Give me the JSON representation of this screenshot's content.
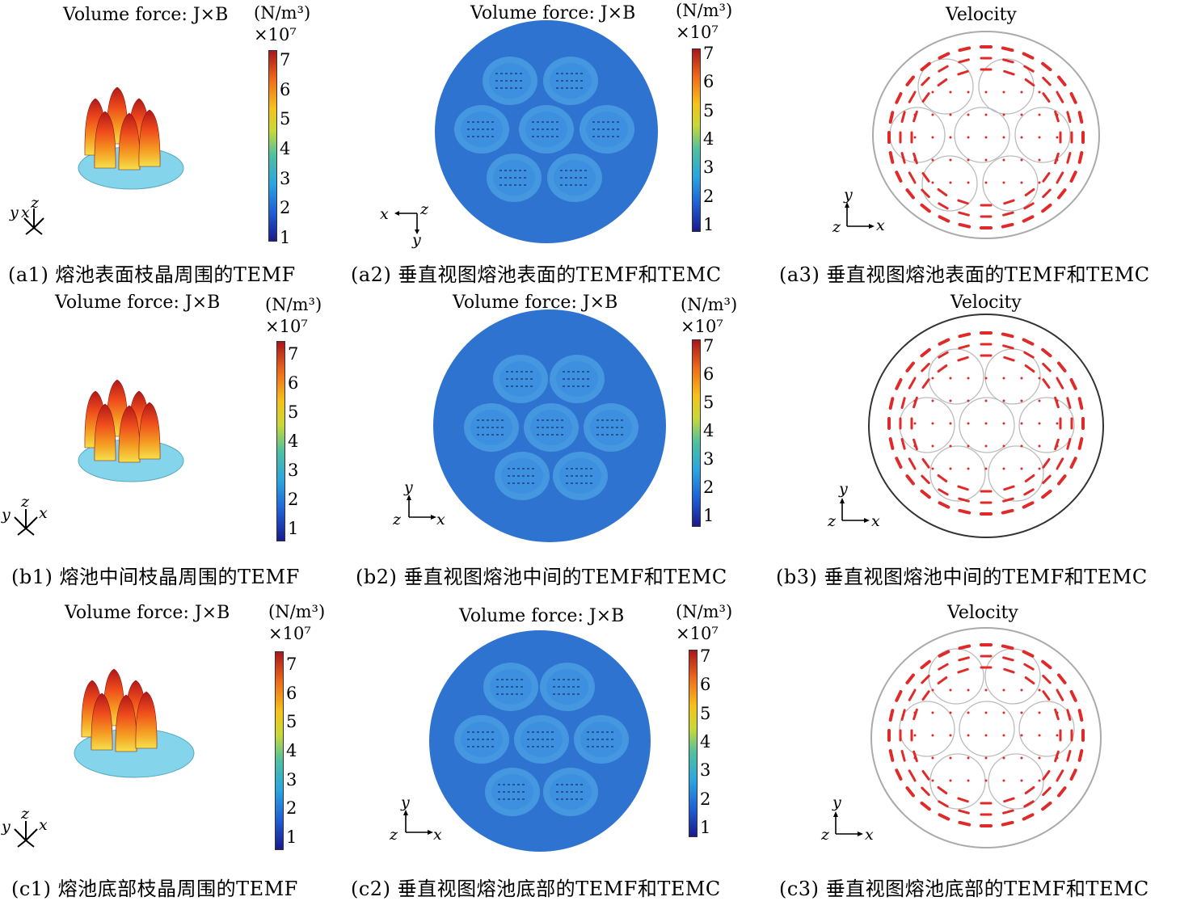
{
  "rows": [
    {
      "id": "a",
      "panel1": {
        "title": "Volume force: J×B",
        "units_line1": "(N/m³)",
        "units_line2": "×10⁷",
        "caption": "(a1) 熔池表面枝晶周围的TEMF",
        "axes": [
          "y",
          "x",
          "z"
        ]
      },
      "panel2": {
        "title": "Volume force: J×B",
        "units_line1": "(N/m³)",
        "units_line2": "×10⁷",
        "caption": "(a2) 垂直视图熔池表面的TEMF和TEMC",
        "axes": [
          "x",
          "z",
          "y"
        ]
      },
      "panel3": {
        "title": "Velocity",
        "caption": "(a3) 垂直视图熔池表面的TEMF和TEMC",
        "axes": [
          "y",
          "z",
          "x"
        ]
      }
    },
    {
      "id": "b",
      "panel1": {
        "title": "Volume force: J×B",
        "units_line1": "(N/m³)",
        "units_line2": "×10⁷",
        "caption": "(b1) 熔池中间枝晶周围的TEMF",
        "axes": [
          "y",
          "z",
          "x"
        ]
      },
      "panel2": {
        "title": "Volume force: J×B",
        "units_line1": "(N/m³)",
        "units_line2": "×10⁷",
        "caption": "(b2) 垂直视图熔池中间的TEMF和TEMC",
        "axes": [
          "y",
          "z",
          "x"
        ]
      },
      "panel3": {
        "title": "Velocity",
        "caption": "(b3) 垂直视图熔池中间的TEMF和TEMC",
        "axes": [
          "y",
          "z",
          "x"
        ]
      }
    },
    {
      "id": "c",
      "panel1": {
        "title": "Volume force: J×B",
        "units_line1": "(N/m³)",
        "units_line2": "×10⁷",
        "caption": "(c1) 熔池底部枝晶周围的TEMF",
        "axes": [
          "y",
          "z",
          "x"
        ]
      },
      "panel2": {
        "title": "Volume force: J×B",
        "units_line1": "(N/m³)",
        "units_line2": "×10⁷",
        "caption": "(c2) 垂直视图熔池底部的TEMF和TEMC",
        "axes": [
          "y",
          "z",
          "x"
        ]
      },
      "panel3": {
        "title": "Velocity",
        "caption": "(c3) 垂直视图熔池底部的TEMF和TEMC",
        "axes": [
          "y",
          "z",
          "x"
        ]
      }
    }
  ],
  "colorbar_ticks": [
    "7",
    "6",
    "5",
    "4",
    "3",
    "2",
    "1"
  ],
  "colors": {
    "disk_blue": "#2f73d0",
    "arrow_red": "#e02a2a",
    "base_cyan": "#7fd4ec"
  }
}
